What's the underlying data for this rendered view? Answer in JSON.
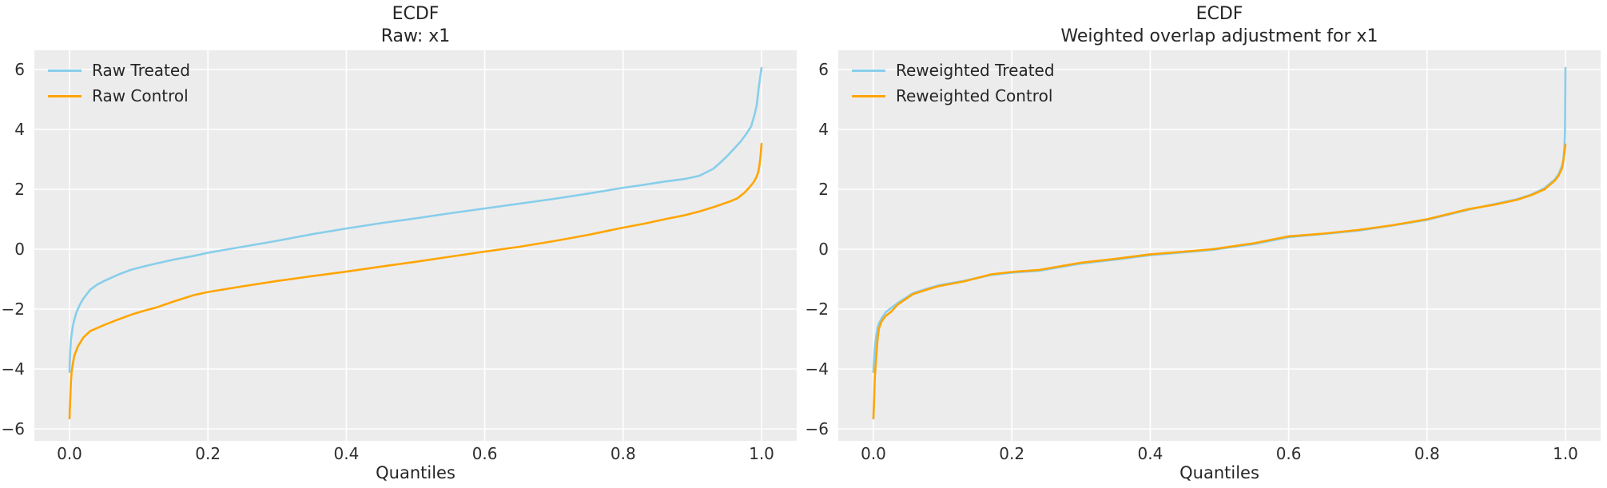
{
  "figure": {
    "background": "#ffffff",
    "axes_background": "#ececec",
    "grid_color": "#ffffff",
    "text_color": "#262626",
    "treated_color": "#87CEEB",
    "control_color": "#FFA500"
  },
  "chart_data": [
    {
      "type": "line",
      "title_line1": "ECDF",
      "title_line2": "Raw: x1",
      "xlabel": "Quantiles",
      "grid": true,
      "legend_position": "upper left",
      "xlim": [
        -0.051,
        1.051
      ],
      "ylim": [
        -6.4,
        6.64
      ],
      "xticks": [
        "0.0",
        "0.2",
        "0.4",
        "0.6",
        "0.8",
        "1.0"
      ],
      "xtick_values": [
        0,
        0.2,
        0.4,
        0.6,
        0.8,
        1.0
      ],
      "yticks": [
        "6",
        "4",
        "2",
        "0",
        "−2",
        "−4",
        "−6"
      ],
      "ytick_values": [
        6,
        4,
        2,
        0,
        -2,
        -4,
        -6
      ],
      "series": [
        {
          "name": "Raw Treated",
          "color": "#87CEEB",
          "points": [
            [
              0,
              -4.1
            ],
            [
              0.0005,
              -3.7
            ],
            [
              0.001,
              -3.4
            ],
            [
              0.002,
              -3.05
            ],
            [
              0.003,
              -2.85
            ],
            [
              0.005,
              -2.55
            ],
            [
              0.007,
              -2.35
            ],
            [
              0.01,
              -2.1
            ],
            [
              0.015,
              -1.85
            ],
            [
              0.02,
              -1.65
            ],
            [
              0.03,
              -1.35
            ],
            [
              0.04,
              -1.18
            ],
            [
              0.05,
              -1.06
            ],
            [
              0.07,
              -0.85
            ],
            [
              0.09,
              -0.68
            ],
            [
              0.11,
              -0.56
            ],
            [
              0.125,
              -0.48
            ],
            [
              0.15,
              -0.35
            ],
            [
              0.18,
              -0.22
            ],
            [
              0.2,
              -0.12
            ],
            [
              0.25,
              0.08
            ],
            [
              0.3,
              0.28
            ],
            [
              0.35,
              0.5
            ],
            [
              0.4,
              0.69
            ],
            [
              0.45,
              0.87
            ],
            [
              0.5,
              1.03
            ],
            [
              0.55,
              1.2
            ],
            [
              0.6,
              1.36
            ],
            [
              0.65,
              1.52
            ],
            [
              0.7,
              1.68
            ],
            [
              0.75,
              1.86
            ],
            [
              0.8,
              2.05
            ],
            [
              0.83,
              2.15
            ],
            [
              0.86,
              2.26
            ],
            [
              0.89,
              2.35
            ],
            [
              0.91,
              2.45
            ],
            [
              0.93,
              2.68
            ],
            [
              0.94,
              2.88
            ],
            [
              0.95,
              3.1
            ],
            [
              0.96,
              3.35
            ],
            [
              0.97,
              3.6
            ],
            [
              0.978,
              3.85
            ],
            [
              0.985,
              4.1
            ],
            [
              0.99,
              4.5
            ],
            [
              0.993,
              4.8
            ],
            [
              0.996,
              5.4
            ],
            [
              0.998,
              5.75
            ],
            [
              1,
              6.05
            ]
          ]
        },
        {
          "name": "Raw Control",
          "color": "#FFA500",
          "points": [
            [
              0,
              -5.65
            ],
            [
              0.0005,
              -5.3
            ],
            [
              0.001,
              -5.0
            ],
            [
              0.002,
              -4.45
            ],
            [
              0.003,
              -4.1
            ],
            [
              0.005,
              -3.8
            ],
            [
              0.007,
              -3.55
            ],
            [
              0.012,
              -3.25
            ],
            [
              0.02,
              -2.95
            ],
            [
              0.03,
              -2.73
            ],
            [
              0.05,
              -2.53
            ],
            [
              0.07,
              -2.35
            ],
            [
              0.09,
              -2.18
            ],
            [
              0.11,
              -2.04
            ],
            [
              0.125,
              -1.95
            ],
            [
              0.15,
              -1.75
            ],
            [
              0.18,
              -1.53
            ],
            [
              0.2,
              -1.43
            ],
            [
              0.25,
              -1.24
            ],
            [
              0.3,
              -1.06
            ],
            [
              0.35,
              -0.9
            ],
            [
              0.4,
              -0.75
            ],
            [
              0.45,
              -0.58
            ],
            [
              0.5,
              -0.42
            ],
            [
              0.55,
              -0.25
            ],
            [
              0.6,
              -0.08
            ],
            [
              0.65,
              0.08
            ],
            [
              0.7,
              0.27
            ],
            [
              0.75,
              0.48
            ],
            [
              0.8,
              0.72
            ],
            [
              0.83,
              0.85
            ],
            [
              0.86,
              1.0
            ],
            [
              0.89,
              1.14
            ],
            [
              0.91,
              1.26
            ],
            [
              0.93,
              1.4
            ],
            [
              0.945,
              1.52
            ],
            [
              0.955,
              1.6
            ],
            [
              0.965,
              1.7
            ],
            [
              0.975,
              1.88
            ],
            [
              0.982,
              2.05
            ],
            [
              0.988,
              2.22
            ],
            [
              0.992,
              2.38
            ],
            [
              0.995,
              2.55
            ],
            [
              0.997,
              2.8
            ],
            [
              0.9985,
              3.1
            ],
            [
              1,
              3.52
            ]
          ]
        }
      ]
    },
    {
      "type": "line",
      "title_line1": "ECDF",
      "title_line2": "Weighted overlap adjustment for x1",
      "xlabel": "Quantiles",
      "grid": true,
      "legend_position": "upper left",
      "xlim": [
        -0.051,
        1.051
      ],
      "ylim": [
        -6.4,
        6.64
      ],
      "xticks": [
        "0.0",
        "0.2",
        "0.4",
        "0.6",
        "0.8",
        "1.0"
      ],
      "xtick_values": [
        0,
        0.2,
        0.4,
        0.6,
        0.8,
        1.0
      ],
      "yticks": [
        "6",
        "4",
        "2",
        "0",
        "−2",
        "−4",
        "−6"
      ],
      "ytick_values": [
        6,
        4,
        2,
        0,
        -2,
        -4,
        -6
      ],
      "series": [
        {
          "name": "Reweighted Treated",
          "color": "#87CEEB",
          "points": [
            [
              0,
              -4.1
            ],
            [
              0.001,
              -3.7
            ],
            [
              0.002,
              -3.3
            ],
            [
              0.004,
              -2.9
            ],
            [
              0.006,
              -2.62
            ],
            [
              0.008,
              -2.48
            ],
            [
              0.012,
              -2.3
            ],
            [
              0.018,
              -2.1
            ],
            [
              0.025,
              -1.97
            ],
            [
              0.035,
              -1.8
            ],
            [
              0.057,
              -1.47
            ],
            [
              0.08,
              -1.3
            ],
            [
              0.095,
              -1.2
            ],
            [
              0.13,
              -1.06
            ],
            [
              0.17,
              -0.86
            ],
            [
              0.2,
              -0.78
            ],
            [
              0.24,
              -0.72
            ],
            [
              0.3,
              -0.48
            ],
            [
              0.35,
              -0.35
            ],
            [
              0.4,
              -0.2
            ],
            [
              0.45,
              -0.1
            ],
            [
              0.49,
              -0.02
            ],
            [
              0.55,
              0.17
            ],
            [
              0.6,
              0.4
            ],
            [
              0.65,
              0.51
            ],
            [
              0.7,
              0.62
            ],
            [
              0.75,
              0.79
            ],
            [
              0.8,
              0.98
            ],
            [
              0.86,
              1.32
            ],
            [
              0.9,
              1.52
            ],
            [
              0.93,
              1.67
            ],
            [
              0.95,
              1.82
            ],
            [
              0.97,
              2.04
            ],
            [
              0.985,
              2.34
            ],
            [
              0.99,
              2.5
            ],
            [
              0.995,
              2.78
            ],
            [
              0.997,
              3.0
            ],
            [
              0.9985,
              3.4
            ],
            [
              0.9993,
              3.9
            ],
            [
              0.9997,
              4.8
            ],
            [
              1,
              6.05
            ]
          ]
        },
        {
          "name": "Reweighted Control",
          "color": "#FFA500",
          "points": [
            [
              0,
              -5.65
            ],
            [
              0.001,
              -5.0
            ],
            [
              0.002,
              -4.3
            ],
            [
              0.004,
              -3.6
            ],
            [
              0.006,
              -3.0
            ],
            [
              0.008,
              -2.65
            ],
            [
              0.012,
              -2.4
            ],
            [
              0.018,
              -2.22
            ],
            [
              0.025,
              -2.1
            ],
            [
              0.035,
              -1.85
            ],
            [
              0.057,
              -1.5
            ],
            [
              0.08,
              -1.33
            ],
            [
              0.095,
              -1.23
            ],
            [
              0.13,
              -1.08
            ],
            [
              0.17,
              -0.84
            ],
            [
              0.2,
              -0.76
            ],
            [
              0.24,
              -0.69
            ],
            [
              0.3,
              -0.45
            ],
            [
              0.35,
              -0.32
            ],
            [
              0.4,
              -0.17
            ],
            [
              0.45,
              -0.08
            ],
            [
              0.49,
              0.0
            ],
            [
              0.55,
              0.2
            ],
            [
              0.6,
              0.43
            ],
            [
              0.65,
              0.52
            ],
            [
              0.7,
              0.64
            ],
            [
              0.75,
              0.8
            ],
            [
              0.8,
              1.0
            ],
            [
              0.86,
              1.34
            ],
            [
              0.9,
              1.5
            ],
            [
              0.93,
              1.65
            ],
            [
              0.95,
              1.8
            ],
            [
              0.97,
              2.0
            ],
            [
              0.985,
              2.3
            ],
            [
              0.99,
              2.45
            ],
            [
              0.995,
              2.7
            ],
            [
              0.997,
              2.95
            ],
            [
              0.9985,
              3.2
            ],
            [
              1,
              3.5
            ]
          ]
        }
      ]
    }
  ]
}
